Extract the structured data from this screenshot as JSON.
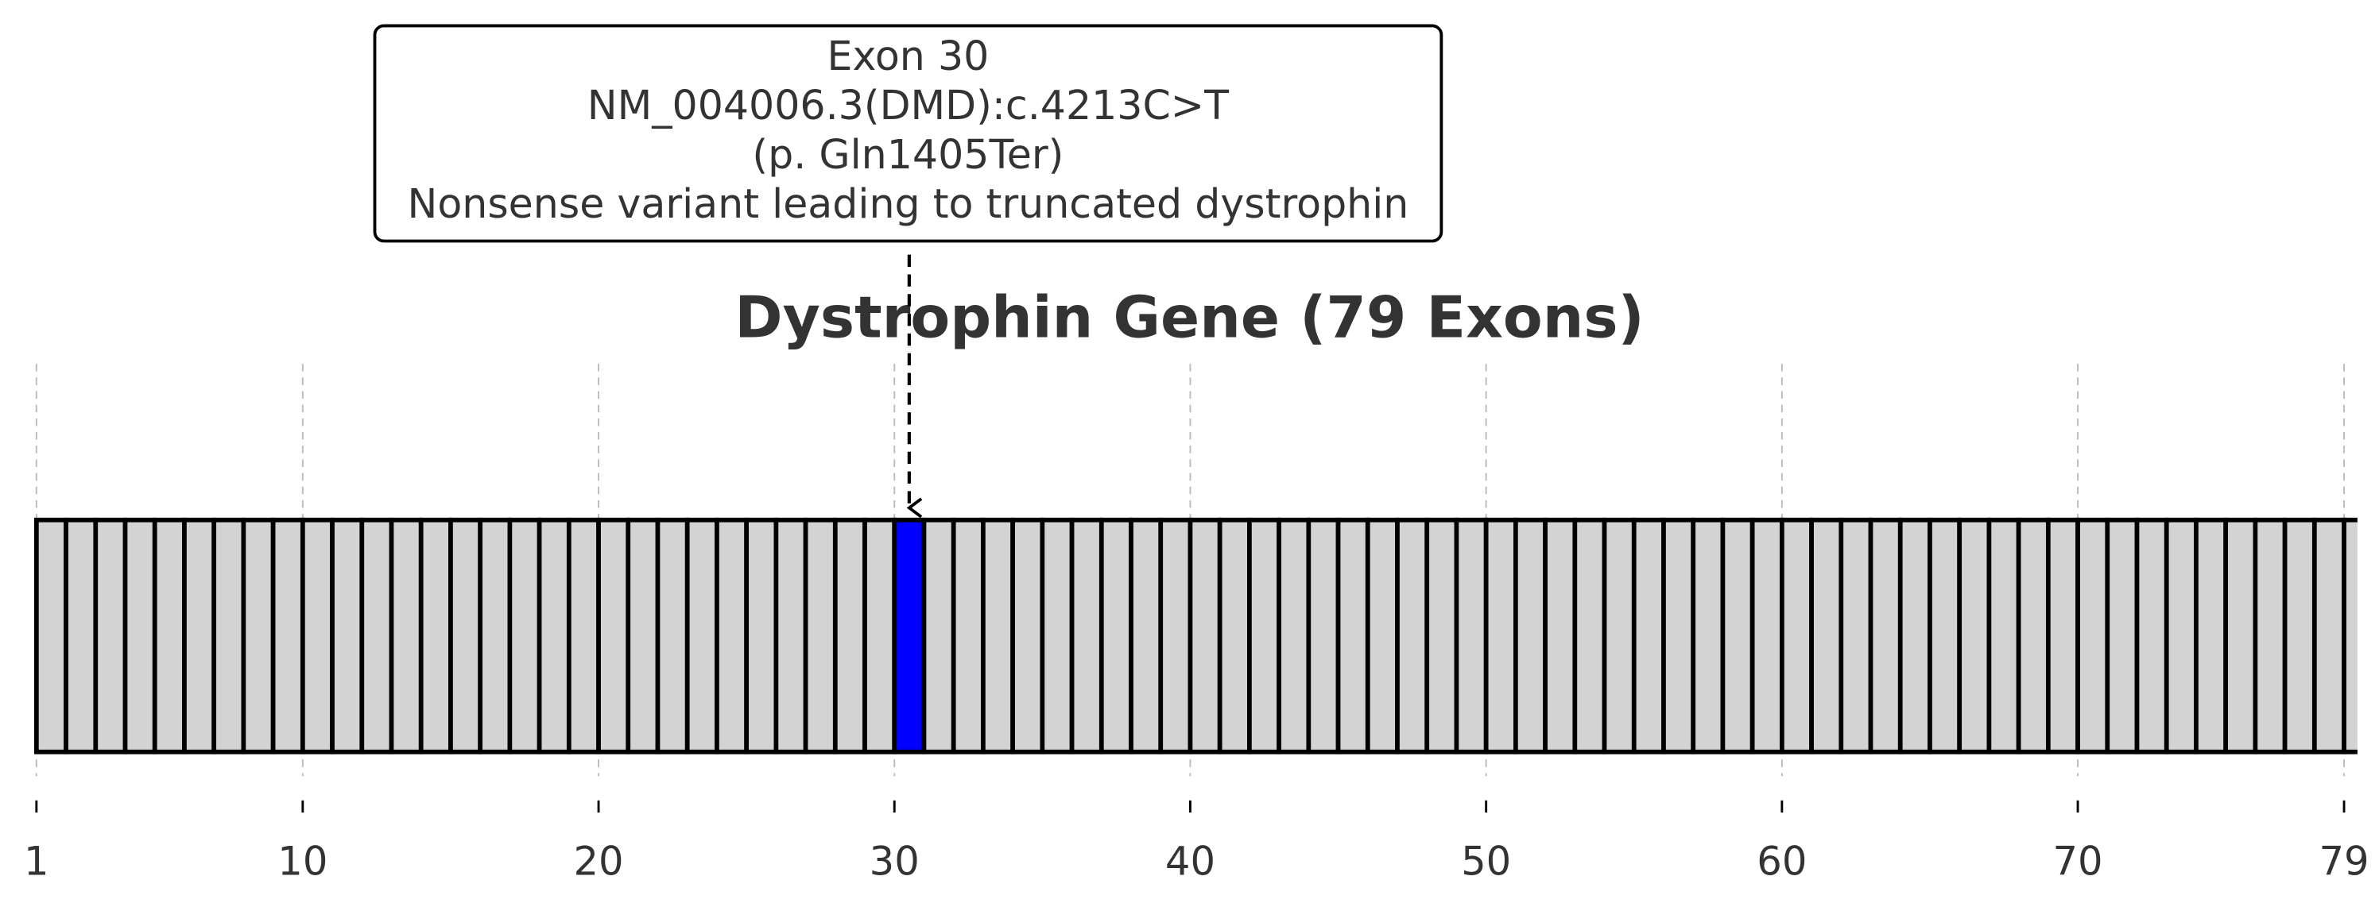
{
  "chart_data": {
    "type": "exon-map",
    "title": "Dystrophin Gene (79 Exons)",
    "x": [
      1,
      2,
      3,
      4,
      5,
      6,
      7,
      8,
      9,
      10,
      11,
      12,
      13,
      14,
      15,
      16,
      17,
      18,
      19,
      20,
      21,
      22,
      23,
      24,
      25,
      26,
      27,
      28,
      29,
      30,
      31,
      32,
      33,
      34,
      35,
      36,
      37,
      38,
      39,
      40,
      41,
      42,
      43,
      44,
      45,
      46,
      47,
      48,
      49,
      50,
      51,
      52,
      53,
      54,
      55,
      56,
      57,
      58,
      59,
      60,
      61,
      62,
      63,
      64,
      65,
      66,
      67,
      68,
      69,
      70,
      71,
      72,
      73,
      74,
      75,
      76,
      77,
      78,
      79
    ],
    "color": "#d3d3d3",
    "highlight": 30,
    "highlight_color": "#0000ff",
    "annotation": [
      "Exon 30",
      "NM_004006.3(DMD):c.4213C>T",
      "(p. Gln1405Ter)",
      "Nonsense variant leading to truncated dystrophin"
    ],
    "xlim": [
      1,
      79.4
    ],
    "xticks": [
      1,
      10,
      20,
      30,
      40,
      50,
      60,
      70,
      79
    ],
    "grid": true
  }
}
